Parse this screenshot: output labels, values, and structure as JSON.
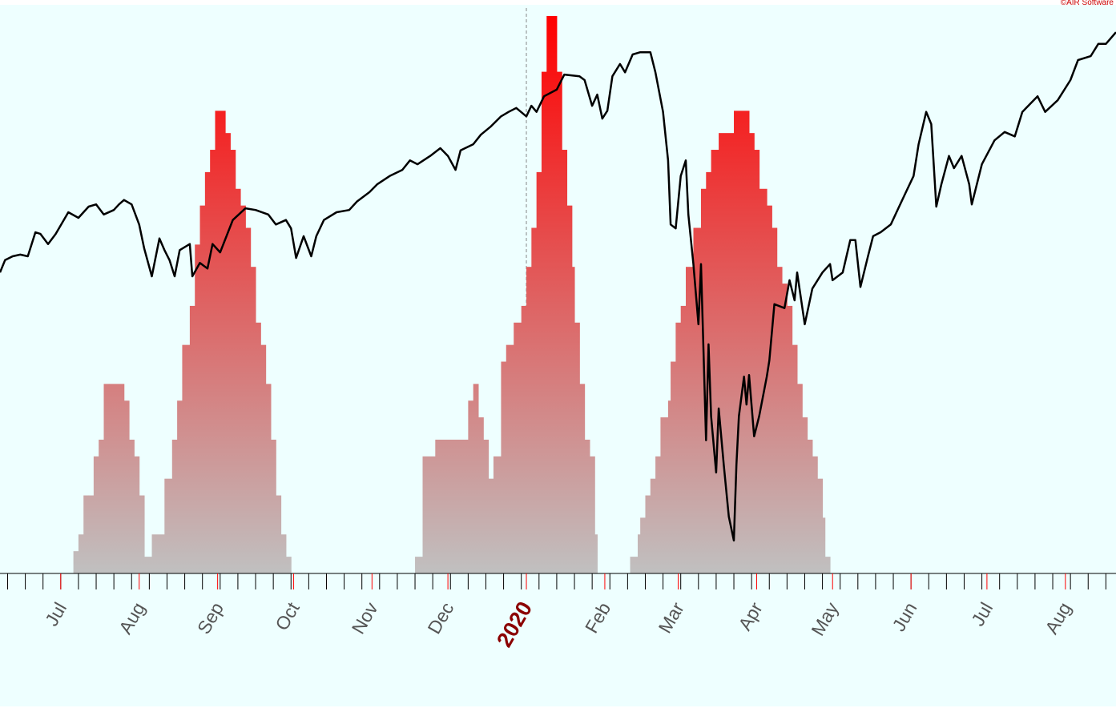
{
  "chart_data": {
    "type": "combo",
    "credit": "©AIR Software",
    "xlim": [
      -24,
      417
    ],
    "ylim": [
      0,
      100
    ],
    "xticks": [
      {
        "value": 0,
        "label": "Jul"
      },
      {
        "value": 31,
        "label": "Aug"
      },
      {
        "value": 62,
        "label": "Sep"
      },
      {
        "value": 92,
        "label": "Oct"
      },
      {
        "value": 123,
        "label": "Nov"
      },
      {
        "value": 153,
        "label": "Dec"
      },
      {
        "value": 184,
        "label": "2020"
      },
      {
        "value": 215,
        "label": "Feb"
      },
      {
        "value": 244,
        "label": "Mar"
      },
      {
        "value": 275,
        "label": "Apr"
      },
      {
        "value": 305,
        "label": "May"
      },
      {
        "value": 336,
        "label": "Jun"
      },
      {
        "value": 366,
        "label": "Jul"
      },
      {
        "value": 397,
        "label": "Aug"
      }
    ],
    "minor_xtick_step": 7,
    "major_tick_color": "#ff0000",
    "minor_tick_color": "#000000",
    "highlight": {
      "xtick": 6,
      "color": "#8b0000",
      "dashed_line": true
    },
    "background": "#eeffff",
    "series": [
      {
        "type": "histogram",
        "gradient": [
          "#c0c0c0",
          "#ff0000"
        ],
        "bins": [
          5,
          7,
          9,
          11,
          13,
          15,
          17,
          19,
          25,
          27,
          29,
          31,
          33,
          36,
          41,
          44,
          46,
          48,
          51,
          53,
          55,
          57,
          59,
          61,
          65,
          67,
          69,
          71,
          73,
          75,
          77,
          79,
          81,
          83,
          85,
          87,
          89,
          91,
          140,
          143,
          148,
          161,
          163,
          165,
          167,
          169,
          171,
          174,
          176,
          179,
          182,
          184,
          186,
          188,
          190,
          192,
          196,
          198,
          200,
          202,
          203,
          205,
          207,
          209,
          211,
          212,
          225,
          228,
          229,
          231,
          233,
          235,
          237,
          240,
          241,
          243,
          245,
          247,
          250,
          253,
          255,
          257,
          260,
          266,
          272,
          274,
          276,
          279,
          281,
          283,
          285,
          287,
          289,
          291,
          293,
          295,
          297,
          299,
          301,
          302,
          304
        ],
        "values": [
          4,
          7,
          14,
          14,
          21,
          24,
          34,
          34,
          31,
          24,
          21,
          14,
          3,
          7,
          17,
          24,
          31,
          41,
          48,
          59,
          66,
          72,
          76,
          83,
          79,
          76,
          69,
          66,
          62,
          55,
          45,
          41,
          34,
          24,
          14,
          7,
          3,
          0,
          3,
          21,
          24,
          31,
          34,
          28,
          24,
          17,
          21,
          38,
          41,
          45,
          48,
          55,
          62,
          72,
          90,
          100,
          90,
          76,
          66,
          55,
          45,
          34,
          24,
          21,
          7,
          0,
          3,
          7,
          10,
          14,
          17,
          21,
          28,
          31,
          38,
          45,
          48,
          55,
          62,
          69,
          72,
          76,
          79,
          83,
          79,
          76,
          69,
          66,
          62,
          55,
          52,
          48,
          41,
          34,
          28,
          24,
          21,
          17,
          10,
          3
        ]
      },
      {
        "type": "line",
        "color": "#000000",
        "x": [
          -24,
          -22,
          -19,
          -16,
          -13,
          -10,
          -8,
          -5,
          -2,
          3,
          7,
          11,
          14,
          17,
          21,
          23,
          25,
          28,
          31,
          33,
          36,
          39,
          41,
          43,
          45,
          47,
          51,
          52,
          55,
          58,
          60,
          63,
          68,
          73,
          77,
          82,
          85,
          89,
          91,
          93,
          96,
          99,
          101,
          104,
          109,
          114,
          117,
          122,
          125,
          130,
          135,
          138,
          141,
          146,
          150,
          153,
          156,
          158,
          163,
          166,
          170,
          174,
          177,
          180,
          184,
          186,
          188,
          191,
          196,
          199,
          205,
          207,
          210,
          212,
          214,
          216,
          218,
          221,
          223,
          226,
          229,
          233,
          235,
          238,
          240,
          241,
          243,
          245,
          247,
          248,
          250,
          252,
          253,
          255,
          256,
          257,
          259,
          260,
          262,
          264,
          266,
          267,
          268,
          270,
          271,
          272,
          274,
          276,
          279,
          280,
          282,
          286,
          288,
          290,
          291,
          294,
          297,
          301,
          304,
          305,
          309,
          312,
          314,
          316,
          319,
          321,
          324,
          328,
          331,
          334,
          337,
          339,
          342,
          344,
          346,
          348,
          351,
          353,
          356,
          359,
          360,
          364,
          369,
          373,
          377,
          380,
          386,
          389,
          394,
          399,
          402,
          407,
          410,
          413,
          417
        ],
        "values": [
          54.0,
          56.2,
          56.9,
          57.2,
          56.9,
          61.2,
          60.9,
          59.1,
          60.9,
          64.8,
          63.8,
          65.8,
          66.2,
          64.4,
          65.2,
          66.2,
          67.0,
          66.2,
          62.6,
          58.3,
          53.3,
          60.1,
          58.0,
          56.2,
          53.3,
          58.0,
          59.1,
          53.3,
          55.7,
          54.7,
          59.1,
          57.6,
          63.4,
          65.5,
          65.2,
          64.4,
          62.6,
          63.4,
          61.9,
          56.6,
          60.5,
          56.9,
          60.5,
          63.4,
          64.8,
          65.2,
          66.7,
          68.4,
          69.8,
          71.3,
          72.4,
          74.1,
          73.4,
          74.9,
          76.3,
          74.9,
          72.4,
          75.9,
          77.0,
          78.7,
          80.2,
          82.0,
          82.8,
          83.5,
          82.0,
          83.9,
          82.8,
          85.6,
          86.8,
          89.5,
          89.2,
          88.5,
          83.9,
          85.9,
          81.6,
          83.0,
          89.2,
          91.4,
          89.9,
          93.1,
          93.5,
          93.5,
          89.9,
          82.8,
          74.1,
          62.6,
          61.9,
          71.3,
          74.1,
          64.4,
          55.5,
          44.7,
          55.5,
          23.9,
          41.1,
          28.2,
          18.1,
          29.6,
          19.5,
          10.2,
          5.9,
          19.5,
          28.2,
          35.3,
          30.3,
          35.6,
          24.6,
          28.2,
          35.3,
          38.2,
          48.3,
          47.6,
          52.6,
          49.0,
          54.0,
          44.7,
          51.1,
          54.0,
          55.5,
          52.6,
          54.0,
          59.8,
          59.8,
          51.4,
          56.9,
          60.5,
          61.2,
          62.6,
          65.5,
          68.4,
          71.3,
          77.0,
          82.8,
          80.6,
          65.8,
          69.8,
          74.9,
          72.7,
          74.9,
          69.8,
          66.2,
          73.4,
          77.7,
          79.2,
          78.4,
          82.8,
          85.6,
          82.8,
          84.9,
          88.5,
          92.1,
          92.8,
          95.0,
          95.0,
          97.1
        ]
      }
    ]
  }
}
